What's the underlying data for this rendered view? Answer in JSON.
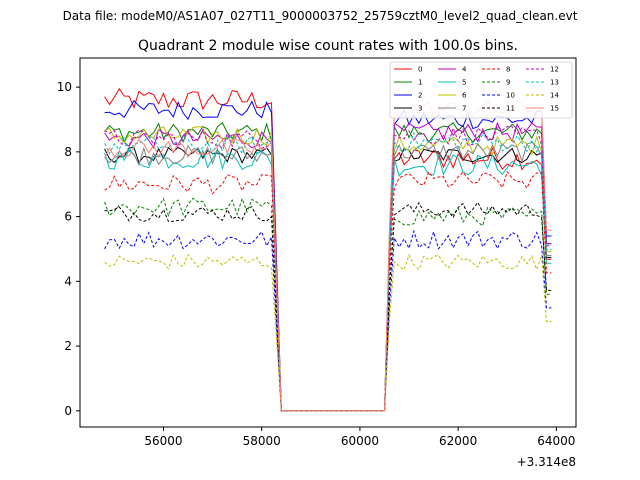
{
  "figure": {
    "suptitle": "Data file: modeM0/AS1A07_027T11_9000003752_25759cztM0_level2_quad_clean.evt"
  },
  "chart_data": {
    "type": "line",
    "title": "Quadrant 2 module wise count rates with 100.0s bins.",
    "xlabel": "",
    "ylabel": "",
    "x_offset_label": "+3.314e8",
    "xlim": [
      54300,
      64400
    ],
    "ylim": [
      -0.5,
      10.9
    ],
    "xticks": [
      56000,
      58000,
      60000,
      62000,
      64000
    ],
    "yticks": [
      0,
      2,
      4,
      6,
      8,
      10
    ],
    "x_start": 54800,
    "x_end": 63900,
    "gap": [
      58400,
      60500
    ],
    "legend_position": "top-right",
    "series": [
      {
        "name": "0",
        "color": "#ff0000",
        "dash": "solid",
        "level": 9.6,
        "level2": 7.8,
        "amp": 0.35
      },
      {
        "name": "1",
        "color": "#008000",
        "dash": "solid",
        "level": 8.6,
        "level2": 8.6,
        "amp": 0.3
      },
      {
        "name": "2",
        "color": "#0000ff",
        "dash": "solid",
        "level": 9.3,
        "level2": 9.0,
        "amp": 0.3
      },
      {
        "name": "3",
        "color": "#000000",
        "dash": "solid",
        "level": 7.9,
        "level2": 7.9,
        "amp": 0.25
      },
      {
        "name": "4",
        "color": "#bf00bf",
        "dash": "solid",
        "level": 8.4,
        "level2": 8.6,
        "amp": 0.3
      },
      {
        "name": "5",
        "color": "#00bfbf",
        "dash": "solid",
        "level": 7.8,
        "level2": 7.6,
        "amp": 0.35
      },
      {
        "name": "6",
        "color": "#bfbf00",
        "dash": "solid",
        "level": 8.5,
        "level2": 8.2,
        "amp": 0.3
      },
      {
        "name": "7",
        "color": "#808080",
        "dash": "solid",
        "level": 7.9,
        "level2": 8.0,
        "amp": 0.3
      },
      {
        "name": "8",
        "color": "#ff0000",
        "dash": "dashed",
        "level": 7.0,
        "level2": 7.1,
        "amp": 0.3
      },
      {
        "name": "9",
        "color": "#008000",
        "dash": "dashed",
        "level": 6.3,
        "level2": 6.0,
        "amp": 0.3
      },
      {
        "name": "10",
        "color": "#0000ff",
        "dash": "dashed",
        "level": 5.3,
        "level2": 5.3,
        "amp": 0.3
      },
      {
        "name": "11",
        "color": "#000000",
        "dash": "dashed",
        "level": 6.1,
        "level2": 6.2,
        "amp": 0.25
      },
      {
        "name": "12",
        "color": "#bf00bf",
        "dash": "dashed",
        "level": 8.4,
        "level2": 8.5,
        "amp": 0.3
      },
      {
        "name": "13",
        "color": "#00bfbf",
        "dash": "dashed",
        "level": 8.2,
        "level2": 8.3,
        "amp": 0.3
      },
      {
        "name": "14",
        "color": "#bfbf00",
        "dash": "dashed",
        "level": 4.6,
        "level2": 4.6,
        "amp": 0.25
      },
      {
        "name": "15",
        "color": "#fa8072",
        "dash": "solid",
        "level": 8.1,
        "level2": 9.3,
        "amp": 0.3
      }
    ]
  }
}
